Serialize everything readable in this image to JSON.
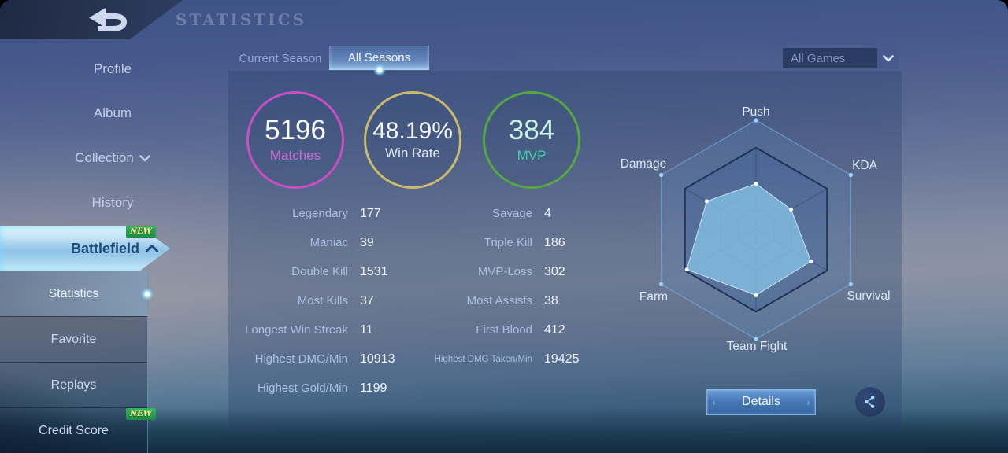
{
  "header": {
    "title": "STATISTICS"
  },
  "sidebar": {
    "items": [
      {
        "label": "Profile"
      },
      {
        "label": "Album"
      },
      {
        "label": "Collection",
        "chevron": "down"
      },
      {
        "label": "History"
      }
    ],
    "battlefield": {
      "label": "Battlefield",
      "badge": "NEW",
      "chevron": "up"
    },
    "submenu": [
      {
        "label": "Statistics",
        "active": true
      },
      {
        "label": "Favorite"
      },
      {
        "label": "Replays"
      },
      {
        "label": "Credit Score",
        "badge": "NEW"
      }
    ]
  },
  "tabs": [
    {
      "label": "Current Season",
      "active": false
    },
    {
      "label": "All Seasons",
      "active": true
    }
  ],
  "filter": {
    "value": "All Games"
  },
  "overview": {
    "circles": [
      {
        "value": "5196",
        "label": "Matches",
        "ring_color": "#c94fc3",
        "value_color": "#fdfdff",
        "label_color": "#d06bd6",
        "size": "big"
      },
      {
        "value": "48.19%",
        "label": "Win Rate",
        "ring_color": "#c9ba6c",
        "value_color": "#f3f7fb",
        "label_color": "#e3ebf4",
        "size": "mid"
      },
      {
        "value": "384",
        "label": "MVP",
        "ring_color": "#55a742",
        "value_color": "#c9f4e4",
        "label_color": "#41d3a4",
        "size": "big"
      }
    ]
  },
  "stats": {
    "left": [
      {
        "label": "Legendary",
        "value": "177"
      },
      {
        "label": "Maniac",
        "value": "39"
      },
      {
        "label": "Double Kill",
        "value": "1531"
      },
      {
        "label": "Most Kills",
        "value": "37"
      },
      {
        "label": "Longest Win Streak",
        "value": "11"
      },
      {
        "label": "Highest DMG/Min",
        "value": "10913"
      },
      {
        "label": "Highest Gold/Min",
        "value": "1199"
      }
    ],
    "right": [
      {
        "label": "Savage",
        "value": "4"
      },
      {
        "label": "Triple Kill",
        "value": "186"
      },
      {
        "label": "MVP-Loss",
        "value": "302"
      },
      {
        "label": "Most Assists",
        "value": "38"
      },
      {
        "label": "First Blood",
        "value": "412"
      },
      {
        "label": "Highest DMG Taken/Min",
        "value": "19425",
        "small": true
      }
    ]
  },
  "chart_data": {
    "type": "radar",
    "title": "Battlefield performance radar",
    "axes": [
      "Push",
      "KDA",
      "Survival",
      "Team Fight",
      "Farm",
      "Damage"
    ],
    "values": [
      42,
      37,
      58,
      60,
      73,
      52
    ],
    "max": 100,
    "grid": "hexagonal",
    "grid_rings_pct": [
      100,
      75,
      37.5,
      19
    ],
    "fill_color": "#85c3e6",
    "legend_position": "none"
  },
  "actions": {
    "details": "Details"
  },
  "icons": {
    "back": "undo-arrow",
    "collection_chevron": "chevron-down",
    "battlefield_chevron": "chevron-up",
    "dropdown_chevron": "chevron-down",
    "share": "share-nodes"
  },
  "colors": {
    "accent_cyan": "#8cdcff",
    "badge_green": "#2fae5c",
    "badge_text_yellow": "#ffe98a",
    "details_button_blue": "#4577b5",
    "panel_tint": "rgba(40,62,105,0.30)"
  }
}
